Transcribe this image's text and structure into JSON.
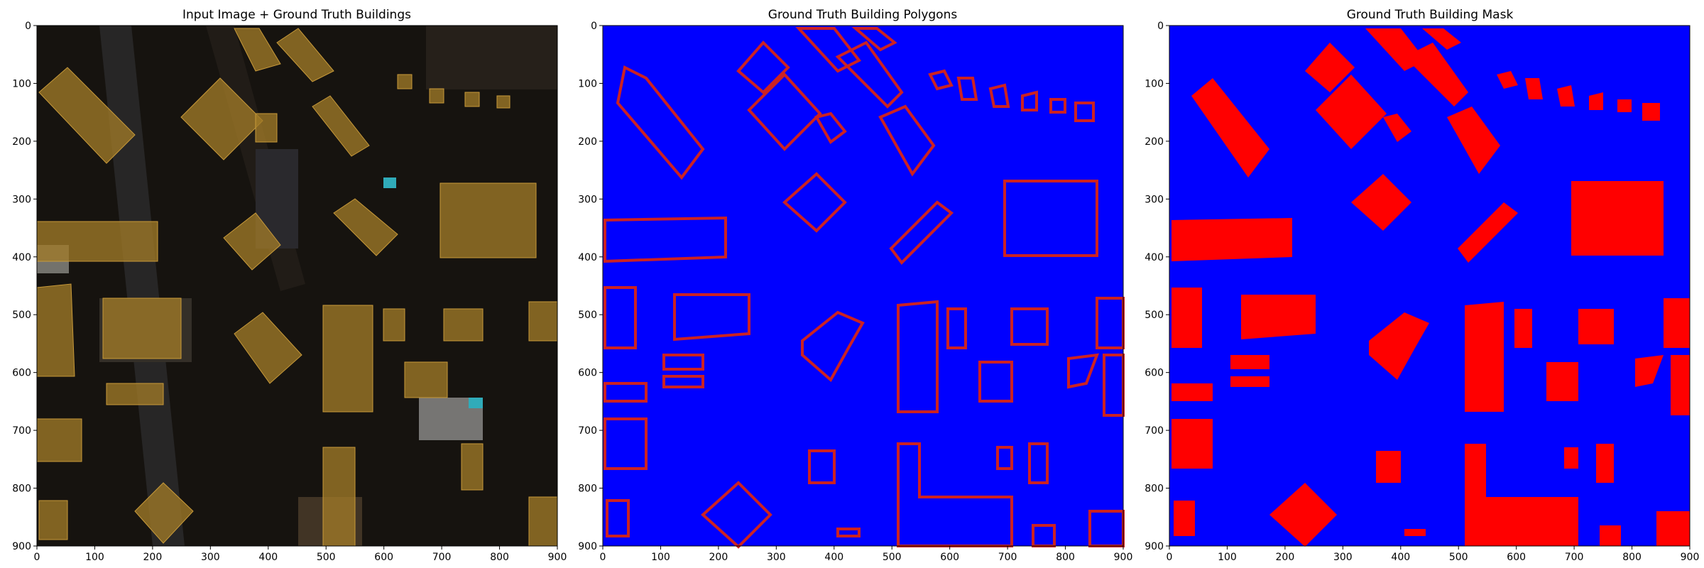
{
  "panels": [
    {
      "title": "Input Image + Ground Truth Buildings"
    },
    {
      "title": "Ground Truth Building Polygons"
    },
    {
      "title": "Ground Truth Building Mask"
    }
  ],
  "axis": {
    "ticks": [
      "0",
      "100",
      "200",
      "300",
      "400",
      "500",
      "600",
      "700",
      "800",
      "900"
    ],
    "range": [
      0,
      900
    ]
  },
  "colors": {
    "background": "#0000ff",
    "building_fill": "#ff0000",
    "building_outline": "#cc2222",
    "overlay_fill": "#a07a28",
    "aerial_dark": "#16130f"
  }
}
